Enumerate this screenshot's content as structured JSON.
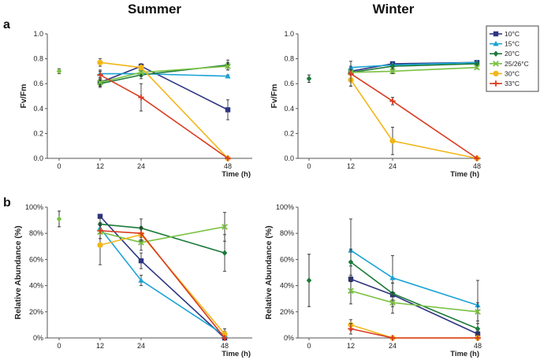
{
  "headers": {
    "summer": "Summer",
    "winter": "Winter",
    "panel_a": "a",
    "panel_b": "b"
  },
  "legend": [
    {
      "name": "10°C",
      "color": "#2e3581",
      "marker": "square"
    },
    {
      "name": "15°C",
      "color": "#1aa3d6",
      "marker": "triangle"
    },
    {
      "name": "20°C",
      "color": "#1c7a3a",
      "marker": "diamond"
    },
    {
      "name": "25/26°C",
      "color": "#7ac142",
      "marker": "x"
    },
    {
      "name": "30°C",
      "color": "#f2b619",
      "marker": "circle"
    },
    {
      "name": "33°C",
      "color": "#d93b1f",
      "marker": "plus"
    }
  ],
  "chart_data": [
    {
      "id": "a_summer",
      "type": "line",
      "ylabel": "Fv/Fm",
      "xlabel": "Time (h)",
      "x_ticks": [
        "0",
        "12",
        "24",
        "48"
      ],
      "y_ticks": [
        "0.0",
        "0.2",
        "0.4",
        "0.6",
        "0.8",
        "1.0"
      ],
      "ylim": [
        0,
        1
      ],
      "initial": {
        "x": 0,
        "y": 0.7,
        "err": 0.02,
        "color": "#7ac142"
      },
      "series": [
        {
          "name": "10°C",
          "x": [
            12,
            24,
            48
          ],
          "y": [
            0.61,
            0.74,
            0.39
          ],
          "err": [
            0.03,
            0.02,
            0.08
          ]
        },
        {
          "name": "15°C",
          "x": [
            12,
            24,
            48
          ],
          "y": [
            0.68,
            0.68,
            0.66
          ],
          "err": [
            0.03,
            0.02,
            0.01
          ]
        },
        {
          "name": "20°C",
          "x": [
            12,
            24,
            48
          ],
          "y": [
            0.6,
            0.67,
            0.75
          ],
          "err": [
            0.03,
            0.03,
            0.04
          ]
        },
        {
          "name": "25/26°C",
          "x": [
            12,
            24,
            48
          ],
          "y": [
            0.61,
            0.69,
            0.74
          ],
          "err": [
            0.03,
            0.03,
            0.03
          ]
        },
        {
          "name": "30°C",
          "x": [
            12,
            24,
            48
          ],
          "y": [
            0.77,
            0.73,
            0.0
          ],
          "err": [
            0.03,
            0.02,
            0.0
          ]
        },
        {
          "name": "33°C",
          "x": [
            12,
            24,
            48
          ],
          "y": [
            0.67,
            0.49,
            0.0
          ],
          "err": [
            0.03,
            0.11,
            0.0
          ]
        }
      ]
    },
    {
      "id": "a_winter",
      "type": "line",
      "ylabel": "Fv/Fm",
      "xlabel": "Time (h)",
      "x_ticks": [
        "0",
        "12",
        "24",
        "48"
      ],
      "y_ticks": [
        "0.0",
        "0.2",
        "0.4",
        "0.6",
        "0.8",
        "1.0"
      ],
      "ylim": [
        0,
        1
      ],
      "initial": {
        "x": 0,
        "y": 0.64,
        "err": 0.03,
        "color": "#1c7a3a"
      },
      "series": [
        {
          "name": "10°C",
          "x": [
            12,
            24,
            48
          ],
          "y": [
            0.7,
            0.76,
            0.77
          ],
          "err": [
            0.01,
            0.01,
            0.01
          ]
        },
        {
          "name": "15°C",
          "x": [
            12,
            24,
            48
          ],
          "y": [
            0.73,
            0.75,
            0.77
          ],
          "err": [
            0.01,
            0.01,
            0.01
          ]
        },
        {
          "name": "20°C",
          "x": [
            12,
            24,
            48
          ],
          "y": [
            0.69,
            0.74,
            0.76
          ],
          "err": [
            0.01,
            0.01,
            0.01
          ]
        },
        {
          "name": "25/26°C",
          "x": [
            12,
            24,
            48
          ],
          "y": [
            0.69,
            0.7,
            0.73
          ],
          "err": [
            0.02,
            0.02,
            0.01
          ]
        },
        {
          "name": "30°C",
          "x": [
            12,
            24,
            48
          ],
          "y": [
            0.63,
            0.14,
            0.0
          ],
          "err": [
            0.05,
            0.11,
            0.0
          ]
        },
        {
          "name": "33°C",
          "x": [
            12,
            24,
            48
          ],
          "y": [
            0.68,
            0.46,
            0.0
          ],
          "err": [
            0.1,
            0.03,
            0.0
          ]
        }
      ]
    },
    {
      "id": "b_summer",
      "type": "line",
      "ylabel": "Relative Abundance (%)",
      "xlabel": "Time (h)",
      "x_ticks": [
        "0",
        "12",
        "24",
        "48"
      ],
      "y_ticks": [
        "0%",
        "20%",
        "40%",
        "60%",
        "80%",
        "100%"
      ],
      "ylim": [
        0,
        100
      ],
      "initial": {
        "x": 0,
        "y": 91,
        "err": 6,
        "color": "#7ac142"
      },
      "series": [
        {
          "name": "10°C",
          "x": [
            12,
            24,
            48
          ],
          "y": [
            93,
            59,
            0
          ],
          "err": [
            0,
            6,
            0
          ]
        },
        {
          "name": "15°C",
          "x": [
            12,
            24,
            48
          ],
          "y": [
            84,
            44,
            2
          ],
          "err": [
            0,
            4,
            3
          ]
        },
        {
          "name": "20°C",
          "x": [
            12,
            24,
            48
          ],
          "y": [
            87,
            84,
            65
          ],
          "err": [
            5,
            7,
            14
          ]
        },
        {
          "name": "25/26°C",
          "x": [
            12,
            24,
            48
          ],
          "y": [
            81,
            73,
            85
          ],
          "err": [
            5,
            6,
            11
          ]
        },
        {
          "name": "30°C",
          "x": [
            12,
            24,
            48
          ],
          "y": [
            71,
            79,
            3
          ],
          "err": [
            15,
            5,
            4
          ]
        },
        {
          "name": "33°C",
          "x": [
            12,
            24,
            48
          ],
          "y": [
            82,
            80,
            0
          ],
          "err": [
            6,
            5,
            0
          ]
        }
      ]
    },
    {
      "id": "b_winter",
      "type": "line",
      "ylabel": "Relative Abundance (%)",
      "xlabel": "Time (h)",
      "x_ticks": [
        "0",
        "12",
        "24",
        "48"
      ],
      "y_ticks": [
        "0%",
        "20%",
        "40%",
        "60%",
        "80%",
        "100%"
      ],
      "ylim": [
        0,
        100
      ],
      "initial": {
        "x": 0,
        "y": 44,
        "err": 20,
        "color": "#1c7a3a"
      },
      "series": [
        {
          "name": "10°C",
          "x": [
            12,
            24,
            48
          ],
          "y": [
            45,
            33,
            3
          ],
          "err": [
            10,
            9,
            2
          ]
        },
        {
          "name": "15°C",
          "x": [
            12,
            24,
            48
          ],
          "y": [
            67,
            46,
            25
          ],
          "err": [
            24,
            17,
            19
          ]
        },
        {
          "name": "20°C",
          "x": [
            12,
            24,
            48
          ],
          "y": [
            58,
            34,
            7
          ],
          "err": [
            10,
            8,
            4
          ]
        },
        {
          "name": "25/26°C",
          "x": [
            12,
            24,
            48
          ],
          "y": [
            36,
            27,
            20
          ],
          "err": [
            10,
            8,
            7
          ]
        },
        {
          "name": "30°C",
          "x": [
            12,
            24,
            48
          ],
          "y": [
            10,
            0,
            0
          ],
          "err": [
            4,
            0,
            0
          ]
        },
        {
          "name": "33°C",
          "x": [
            12,
            24,
            48
          ],
          "y": [
            7,
            0,
            0
          ],
          "err": [
            4,
            0,
            0
          ]
        }
      ]
    }
  ]
}
